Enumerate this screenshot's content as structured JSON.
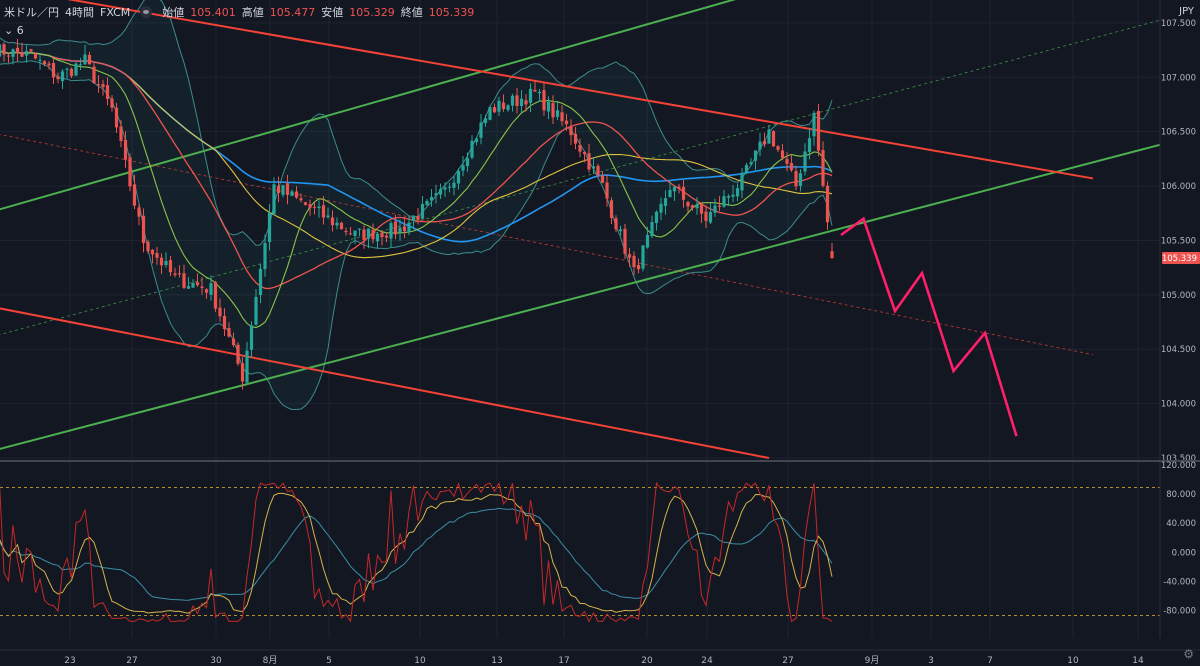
{
  "header": {
    "symbol": "米ドル／円",
    "interval": "4時間",
    "broker": "FXCM",
    "open_label": "始値",
    "open": "105.401",
    "high_label": "高値",
    "high": "105.477",
    "low_label": "安値",
    "low": "105.329",
    "close_label": "終値",
    "close": "105.339",
    "indicator_count": "6",
    "currency": "JPY"
  },
  "colors": {
    "background": "#131722",
    "up": "#26a69a",
    "down": "#ef5350",
    "channel_green": "#4caf50",
    "channel_red": "#f44336",
    "sma_blue": "#2196f3",
    "sma_yellow": "#e1c340",
    "sma_red": "#ef5350",
    "sma_green": "#8bc34a",
    "bollinger": "#3c8c8c",
    "forecast": "#ff1f6b",
    "price_tag": "#ef5350"
  },
  "chart_data": [
    {
      "type": "candlestick",
      "ylim": [
        103.5,
        107.6
      ],
      "y_ticks": [
        "107.500",
        "107.000",
        "106.500",
        "106.000",
        "105.500",
        "105.000",
        "104.500",
        "104.000",
        "103.500"
      ],
      "x_ticks": [
        "23",
        "27",
        "30",
        "8月",
        "5",
        "10",
        "13",
        "17",
        "20",
        "24",
        "27",
        "9月",
        "3",
        "7",
        "10",
        "14"
      ],
      "last_price": "105.339",
      "anchors": [
        [
          0,
          107.25
        ],
        [
          8,
          107.2
        ],
        [
          14,
          107.0
        ],
        [
          20,
          107.15
        ],
        [
          26,
          106.7
        ],
        [
          33,
          105.5
        ],
        [
          40,
          105.15
        ],
        [
          48,
          105.05
        ],
        [
          55,
          104.25
        ],
        [
          62,
          106.0
        ],
        [
          70,
          105.8
        ],
        [
          80,
          105.55
        ],
        [
          90,
          105.6
        ],
        [
          100,
          105.95
        ],
        [
          110,
          106.7
        ],
        [
          120,
          106.85
        ],
        [
          128,
          106.5
        ],
        [
          135,
          106.0
        ],
        [
          142,
          105.2
        ],
        [
          150,
          106.0
        ],
        [
          158,
          105.7
        ],
        [
          166,
          106.05
        ],
        [
          172,
          106.5
        ],
        [
          178,
          106.0
        ],
        [
          182,
          106.65
        ],
        [
          186,
          105.339
        ]
      ],
      "forecast": [
        [
          188,
          105.55
        ],
        [
          193,
          105.7
        ],
        [
          200,
          104.85
        ],
        [
          206,
          105.2
        ],
        [
          213,
          104.3
        ],
        [
          220,
          104.65
        ],
        [
          227,
          103.7
        ]
      ],
      "channel_lines": [
        {
          "color": "green",
          "from": [
            -2,
            105.75
          ],
          "to": [
            218,
            108.35
          ],
          "dashed": false
        },
        {
          "color": "green",
          "from": [
            -2,
            103.55
          ],
          "to": [
            270,
            106.5
          ],
          "dashed": false
        },
        {
          "color": "green",
          "from": [
            -2,
            104.6
          ],
          "to": [
            270,
            107.65
          ],
          "dashed": true
        },
        {
          "color": "red",
          "from": [
            -2,
            107.85
          ],
          "to": [
            244,
            106.07
          ],
          "dashed": false
        },
        {
          "color": "red",
          "from": [
            -2,
            104.9
          ],
          "to": [
            172,
            103.5
          ],
          "dashed": false
        },
        {
          "color": "red",
          "from": [
            -2,
            106.5
          ],
          "to": [
            244,
            104.45
          ],
          "dashed": true
        }
      ]
    },
    {
      "type": "line",
      "title": "",
      "ylim": [
        -100,
        120
      ],
      "y_ticks": [
        "120.000",
        "80.000",
        "40.000",
        "0.000",
        "-40.000",
        "-80.000"
      ],
      "levels": [
        89,
        -87
      ]
    }
  ]
}
